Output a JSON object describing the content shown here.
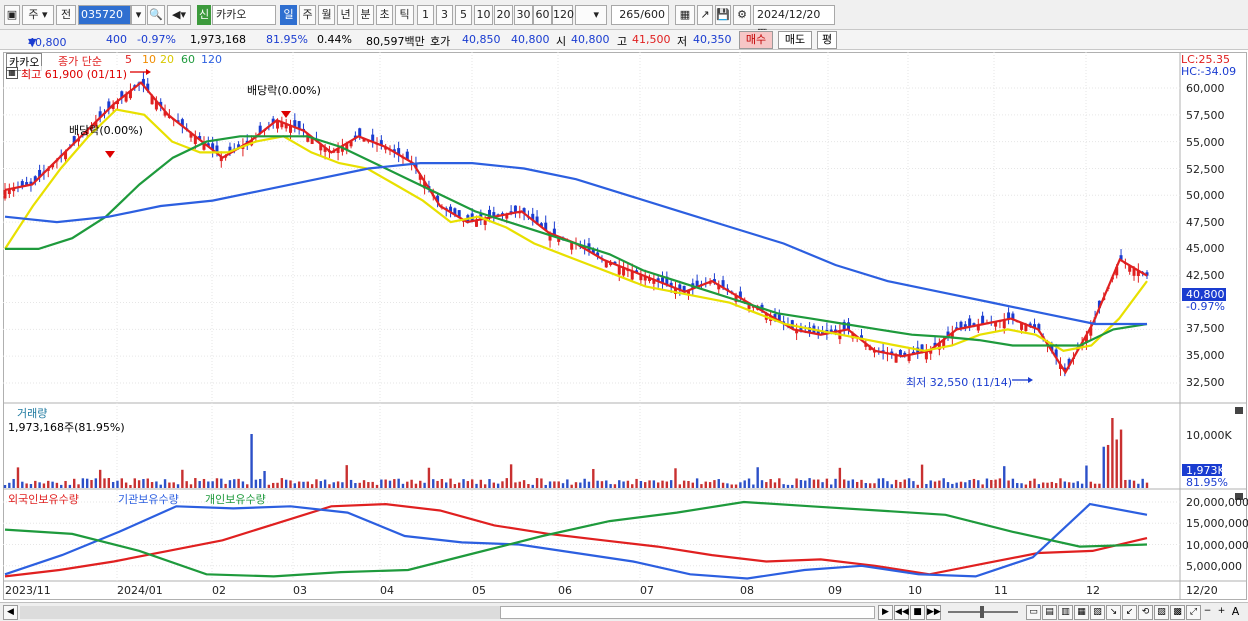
{
  "toolbar": {
    "period_type": "주",
    "prev_label": "전",
    "stock_code": "035720",
    "sin_badge": "신",
    "stock_name": "카카오",
    "periods": [
      "일",
      "주",
      "월",
      "년",
      "분",
      "초",
      "틱"
    ],
    "selected_period": "일",
    "intervals": [
      "1",
      "3",
      "5",
      "10",
      "20",
      "30",
      "60",
      "120"
    ],
    "count": "265",
    "count_max": "/600",
    "date": "2024/12/20"
  },
  "quote": {
    "price": "40,800",
    "arrow": "▼",
    "change": "400",
    "change_pct": "-0.97%",
    "volume": "1,973,168",
    "volume_ratio": "81.95%",
    "turnover": "0.44%",
    "amount": "80,597백만",
    "hoga_label": "호가",
    "ask": "40,850",
    "bid": "40,800",
    "open_label": "시",
    "open": "40,800",
    "high_label": "고",
    "high": "41,500",
    "low_label": "저",
    "low": "40,350",
    "buy_label": "매수",
    "sell_label": "매도",
    "pyeong_label": "평"
  },
  "price_panel": {
    "stock_name": "카카오",
    "legend_prefix": "종가 단순",
    "ma": [
      {
        "label": "5",
        "color": "#e02020"
      },
      {
        "label": "10",
        "color": "#f08c00"
      },
      {
        "label": "20",
        "color": "#e8e000"
      },
      {
        "label": "60",
        "color": "#1e9a3c"
      },
      {
        "label": "120",
        "color": "#2c5fe0"
      }
    ],
    "high_note": "최고 61,900 (01/11)",
    "low_note": "최저 32,550 (11/14)",
    "div1": "배당락(0.00%)",
    "div2": "배당락(0.00%)",
    "lc": "LC:25.35",
    "hc": "HC:-34.09",
    "current_tag": "40,800",
    "current_pct": "-0.97%",
    "y_ticks": [
      "60,000",
      "57,500",
      "55,000",
      "52,500",
      "50,000",
      "47,500",
      "45,000",
      "42,500",
      "37,500",
      "35,000",
      "32,500"
    ]
  },
  "volume_panel": {
    "title": "거래량",
    "value": "1,973,168주(81.95%)",
    "y_tick": "10,000K",
    "current_tag": "1,973K",
    "current_pct": "81.95%"
  },
  "holding_panel": {
    "series": [
      {
        "name": "외국인보유수량",
        "color": "#e02020"
      },
      {
        "name": "기관보유수량",
        "color": "#2c5fe0"
      },
      {
        "name": "개인보유수량",
        "color": "#1e9a3c"
      }
    ],
    "y_ticks": [
      "20,000,000",
      "15,000,000",
      "10,000,000",
      "5,000,000"
    ]
  },
  "x_axis": [
    "2023/11",
    "2024/01",
    "02",
    "03",
    "04",
    "05",
    "06",
    "07",
    "08",
    "09",
    "10",
    "11",
    "12",
    "12/20"
  ],
  "chart_data": [
    {
      "type": "line",
      "title": "카카오",
      "y_range": [
        30000,
        62000
      ],
      "series": [
        {
          "name": "5",
          "values": [
            50500,
            51000,
            53500,
            56000,
            58500,
            60500,
            57500,
            55500,
            53500,
            55000,
            57000,
            56000,
            54000,
            55500,
            54500,
            53000,
            49000,
            47500,
            48000,
            48500,
            46500,
            45500,
            44000,
            43000,
            42000,
            41000,
            42000,
            40500,
            39000,
            37500,
            37000,
            37500,
            35500,
            35000,
            35500,
            37500,
            38000,
            38500,
            37500,
            33500,
            38000,
            44000,
            42500
          ]
        },
        {
          "name": "20",
          "values": [
            45000,
            49000,
            52500,
            55500,
            58000,
            57500,
            55000,
            54000,
            54000,
            55000,
            55500,
            54000,
            53000,
            52500,
            51000,
            49500,
            47500,
            48000,
            47000,
            45500,
            44500,
            43500,
            42500,
            41500,
            41000,
            40500,
            40000,
            39000,
            38000,
            37500,
            37000,
            36500,
            36000,
            35500,
            36000,
            37000,
            37500,
            37000,
            35500,
            36000,
            38500,
            42000
          ]
        },
        {
          "name": "60",
          "values": [
            45000,
            45000,
            46000,
            48000,
            51000,
            53500,
            55000,
            55500,
            55500,
            55500,
            54500,
            53000,
            51500,
            50000,
            48500,
            47500,
            46500,
            45500,
            44500,
            43000,
            42000,
            41000,
            40000,
            39000,
            38500,
            38000,
            37500,
            37000,
            36800,
            36500,
            36000,
            36000,
            36000,
            37500,
            38000
          ]
        },
        {
          "name": "120",
          "values": [
            48000,
            47500,
            48000,
            49000,
            49500,
            50500,
            51500,
            52500,
            53000,
            53000,
            52500,
            51500,
            50000,
            48500,
            47000,
            45500,
            43500,
            42000,
            41000,
            40000,
            39000,
            38000,
            38000
          ]
        },
        {
          "name": "외국인보유수량",
          "values": [
            2500000,
            4000000,
            6000000,
            8500000,
            11000000,
            15000000,
            19000000,
            19500000,
            18000000,
            14500000,
            12500000,
            11000000,
            9500000,
            7500000,
            6000000,
            6500000,
            5000000,
            3000000,
            5500000,
            8000000,
            8500000,
            11500000
          ]
        },
        {
          "name": "기관보유수량",
          "values": [
            3000000,
            7500000,
            13000000,
            19000000,
            18500000,
            19000000,
            17500000,
            12000000,
            10500000,
            10000000,
            8000000,
            6000000,
            3000000,
            2000000,
            4000000,
            5000000,
            3000000,
            2500000,
            7000000,
            19500000,
            17000000
          ]
        },
        {
          "name": "개인보유수량",
          "values": [
            13500000,
            12500000,
            8500000,
            3000000,
            2500000,
            3500000,
            4000000,
            8000000,
            12000000,
            15500000,
            17500000,
            20000000,
            19000000,
            18000000,
            17000000,
            13000000,
            9500000,
            10000000
          ]
        }
      ]
    }
  ]
}
